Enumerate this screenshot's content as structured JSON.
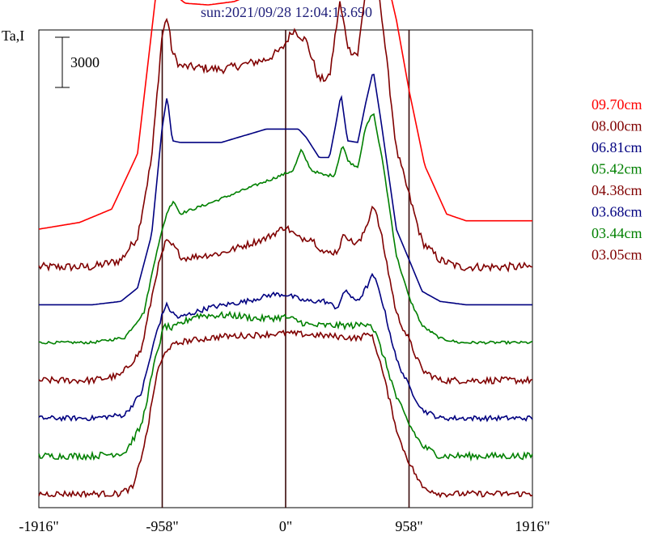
{
  "chart_data": {
    "type": "line",
    "title": "sun:2021/09/28 12:04:13.690",
    "ylabel": "Ta,I",
    "scale_bar_label": "3000",
    "xlim": [
      -1916,
      1916
    ],
    "x_ticks": [
      {
        "value": -1916,
        "label": "-1916\""
      },
      {
        "value": -958,
        "label": "-958\""
      },
      {
        "value": 0,
        "label": "0\""
      },
      {
        "value": 958,
        "label": "958\""
      },
      {
        "value": 1916,
        "label": "1916\""
      }
    ],
    "vertical_lines_at": [
      -958,
      0,
      958
    ],
    "grid": false,
    "legend_position": "right",
    "series": [
      {
        "name": "09.70cm",
        "color": "#ff0000",
        "noise": 0,
        "points": [
          [
            -1916,
            0
          ],
          [
            -1600,
            400
          ],
          [
            -1350,
            1200
          ],
          [
            -1150,
            4500
          ],
          [
            -1000,
            14500
          ],
          [
            -930,
            16800
          ],
          [
            -860,
            14000
          ],
          [
            -780,
            13500
          ],
          [
            -600,
            13400
          ],
          [
            -400,
            13600
          ],
          [
            -200,
            14200
          ],
          [
            -40,
            15500
          ],
          [
            50,
            15500
          ],
          [
            160,
            15000
          ],
          [
            260,
            15200
          ],
          [
            340,
            17500
          ],
          [
            420,
            19500
          ],
          [
            470,
            17000
          ],
          [
            560,
            16500
          ],
          [
            620,
            18500
          ],
          [
            680,
            19300
          ],
          [
            740,
            16500
          ],
          [
            860,
            12500
          ],
          [
            958,
            8300
          ],
          [
            1080,
            3800
          ],
          [
            1250,
            900
          ],
          [
            1400,
            500
          ],
          [
            1916,
            500
          ]
        ]
      },
      {
        "name": "08.00cm",
        "color": "#800000",
        "noise": 250,
        "points": [
          [
            -1916,
            0
          ],
          [
            -1500,
            0
          ],
          [
            -1280,
            400
          ],
          [
            -1150,
            1800
          ],
          [
            -1040,
            6500
          ],
          [
            -960,
            13800
          ],
          [
            -920,
            15000
          ],
          [
            -880,
            12800
          ],
          [
            -820,
            12000
          ],
          [
            -500,
            11800
          ],
          [
            -150,
            12400
          ],
          [
            -30,
            13000
          ],
          [
            60,
            14200
          ],
          [
            160,
            13500
          ],
          [
            260,
            11200
          ],
          [
            340,
            11300
          ],
          [
            420,
            15800
          ],
          [
            490,
            13000
          ],
          [
            560,
            12700
          ],
          [
            620,
            16500
          ],
          [
            680,
            18500
          ],
          [
            740,
            15500
          ],
          [
            860,
            7000
          ],
          [
            958,
            4300
          ],
          [
            1060,
            1500
          ],
          [
            1200,
            400
          ],
          [
            1350,
            0
          ],
          [
            1916,
            0
          ]
        ]
      },
      {
        "name": "06.81cm",
        "color": "#000080",
        "noise": 0,
        "points": [
          [
            -1916,
            0
          ],
          [
            -1500,
            0
          ],
          [
            -1280,
            200
          ],
          [
            -1150,
            1000
          ],
          [
            -1040,
            4200
          ],
          [
            -960,
            10500
          ],
          [
            -920,
            12500
          ],
          [
            -880,
            9800
          ],
          [
            -820,
            9700
          ],
          [
            -500,
            9700
          ],
          [
            -150,
            10500
          ],
          [
            0,
            10500
          ],
          [
            100,
            10500
          ],
          [
            160,
            10000
          ],
          [
            260,
            8800
          ],
          [
            340,
            8800
          ],
          [
            390,
            10800
          ],
          [
            430,
            12600
          ],
          [
            480,
            9800
          ],
          [
            560,
            9700
          ],
          [
            620,
            12000
          ],
          [
            680,
            14000
          ],
          [
            740,
            11000
          ],
          [
            860,
            4500
          ],
          [
            958,
            2700
          ],
          [
            1060,
            800
          ],
          [
            1200,
            200
          ],
          [
            1400,
            0
          ],
          [
            1916,
            0
          ]
        ]
      },
      {
        "name": "05.42cm",
        "color": "#008000",
        "noise": 80,
        "points": [
          [
            -1916,
            0
          ],
          [
            -1500,
            0
          ],
          [
            -1250,
            300
          ],
          [
            -1100,
            1800
          ],
          [
            -1000,
            5500
          ],
          [
            -920,
            7800
          ],
          [
            -870,
            8500
          ],
          [
            -820,
            7700
          ],
          [
            -600,
            8300
          ],
          [
            -300,
            9200
          ],
          [
            0,
            10100
          ],
          [
            60,
            10300
          ],
          [
            120,
            11500
          ],
          [
            200,
            10300
          ],
          [
            300,
            10000
          ],
          [
            380,
            10000
          ],
          [
            440,
            11800
          ],
          [
            490,
            10800
          ],
          [
            560,
            10500
          ],
          [
            620,
            12800
          ],
          [
            680,
            13800
          ],
          [
            760,
            10500
          ],
          [
            860,
            5200
          ],
          [
            958,
            2700
          ],
          [
            1060,
            1000
          ],
          [
            1200,
            250
          ],
          [
            1350,
            0
          ],
          [
            1916,
            0
          ]
        ]
      },
      {
        "name": "04.38cm",
        "color": "#800000",
        "noise": 200,
        "points": [
          [
            -1916,
            0
          ],
          [
            -1500,
            0
          ],
          [
            -1280,
            300
          ],
          [
            -1120,
            1800
          ],
          [
            -1000,
            6500
          ],
          [
            -930,
            8300
          ],
          [
            -870,
            8000
          ],
          [
            -800,
            7300
          ],
          [
            -500,
            7600
          ],
          [
            -150,
            8500
          ],
          [
            0,
            9200
          ],
          [
            100,
            8500
          ],
          [
            200,
            8500
          ],
          [
            300,
            7600
          ],
          [
            400,
            7700
          ],
          [
            460,
            8800
          ],
          [
            520,
            8200
          ],
          [
            580,
            8300
          ],
          [
            640,
            9500
          ],
          [
            680,
            10600
          ],
          [
            740,
            8800
          ],
          [
            860,
            4000
          ],
          [
            958,
            2400
          ],
          [
            1060,
            600
          ],
          [
            1200,
            0
          ],
          [
            1916,
            0
          ]
        ]
      },
      {
        "name": "03.68cm",
        "color": "#000080",
        "noise": 150,
        "points": [
          [
            -1916,
            0
          ],
          [
            -1500,
            0
          ],
          [
            -1250,
            200
          ],
          [
            -1120,
            1500
          ],
          [
            -1000,
            5200
          ],
          [
            -930,
            6800
          ],
          [
            -880,
            6300
          ],
          [
            -830,
            6000
          ],
          [
            -600,
            6600
          ],
          [
            -300,
            7000
          ],
          [
            -100,
            7400
          ],
          [
            0,
            7400
          ],
          [
            150,
            7000
          ],
          [
            300,
            7000
          ],
          [
            400,
            6600
          ],
          [
            470,
            7700
          ],
          [
            530,
            7000
          ],
          [
            580,
            7200
          ],
          [
            640,
            8000
          ],
          [
            680,
            8600
          ],
          [
            740,
            7300
          ],
          [
            860,
            3500
          ],
          [
            958,
            1900
          ],
          [
            1060,
            500
          ],
          [
            1200,
            0
          ],
          [
            1916,
            0
          ]
        ]
      },
      {
        "name": "03.44cm",
        "color": "#008000",
        "noise": 200,
        "points": [
          [
            -1916,
            0
          ],
          [
            -1500,
            0
          ],
          [
            -1250,
            200
          ],
          [
            -1120,
            1800
          ],
          [
            -1000,
            6200
          ],
          [
            -940,
            7800
          ],
          [
            -880,
            7600
          ],
          [
            -700,
            8400
          ],
          [
            -400,
            8400
          ],
          [
            -200,
            8200
          ],
          [
            0,
            8300
          ],
          [
            200,
            7800
          ],
          [
            400,
            7800
          ],
          [
            560,
            7800
          ],
          [
            650,
            8000
          ],
          [
            700,
            7300
          ],
          [
            780,
            5500
          ],
          [
            860,
            3500
          ],
          [
            958,
            1900
          ],
          [
            1060,
            600
          ],
          [
            1200,
            0
          ],
          [
            1916,
            0
          ]
        ]
      },
      {
        "name": "03.05cm",
        "color": "#800000",
        "noise": 180,
        "points": [
          [
            -1916,
            0
          ],
          [
            -1500,
            0
          ],
          [
            -1300,
            0
          ],
          [
            -1180,
            400
          ],
          [
            -1080,
            3500
          ],
          [
            -1000,
            7200
          ],
          [
            -920,
            8700
          ],
          [
            -800,
            9100
          ],
          [
            -500,
            9400
          ],
          [
            -200,
            9500
          ],
          [
            0,
            9600
          ],
          [
            200,
            9500
          ],
          [
            400,
            9400
          ],
          [
            560,
            9300
          ],
          [
            660,
            9600
          ],
          [
            720,
            8300
          ],
          [
            800,
            5800
          ],
          [
            880,
            3300
          ],
          [
            958,
            1900
          ],
          [
            1060,
            400
          ],
          [
            1200,
            0
          ],
          [
            1916,
            0
          ]
        ]
      }
    ]
  }
}
